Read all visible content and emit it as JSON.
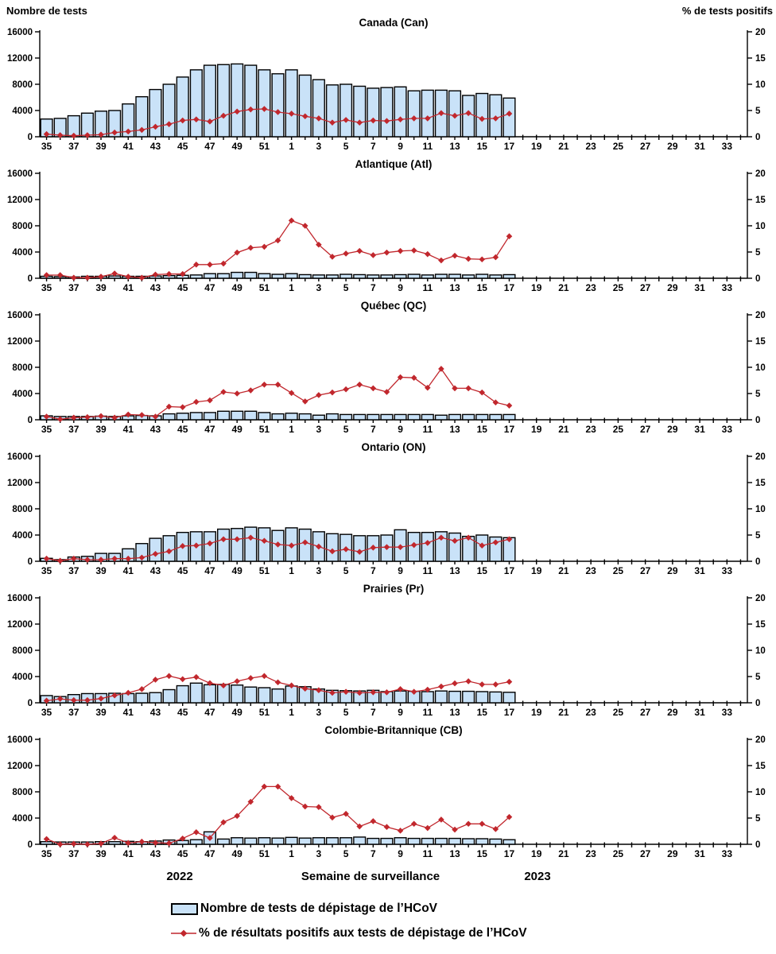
{
  "header": {
    "left_axis_title": "Nombre de tests",
    "right_axis_title": "% de tests positifs"
  },
  "x_axis": {
    "label": "Semaine de surveillance",
    "year_left": "2022",
    "year_right": "2023",
    "tick_labels": [
      "35",
      "37",
      "39",
      "41",
      "43",
      "45",
      "47",
      "49",
      "51",
      "1",
      "3",
      "5",
      "7",
      "9",
      "11",
      "13",
      "15",
      "17",
      "19",
      "21",
      "23",
      "25",
      "27",
      "29",
      "31",
      "33"
    ]
  },
  "y_axis_left": {
    "ticks": [
      0,
      4000,
      8000,
      12000,
      16000
    ],
    "max": 16000
  },
  "y_axis_right": {
    "ticks": [
      0,
      5,
      10,
      15,
      20
    ],
    "max": 20
  },
  "legend": {
    "bar_label": "Nombre de tests de dépistage de l’HCoV",
    "line_label": "% de résultats positifs aux tests de dépistage de l’HCoV"
  },
  "colors": {
    "bar_fill": "#C9E2F8",
    "bar_stroke": "#000000",
    "line": "#C1272D",
    "text": "#000000"
  },
  "chart_data": {
    "type": "bar+line combo, small multiples",
    "categories": [
      "35",
      "36",
      "37",
      "38",
      "39",
      "40",
      "41",
      "42",
      "43",
      "44",
      "45",
      "46",
      "47",
      "48",
      "49",
      "50",
      "51",
      "52",
      "1",
      "2",
      "3",
      "4",
      "5",
      "6",
      "7",
      "8",
      "9",
      "10",
      "11",
      "12",
      "13",
      "14",
      "15",
      "16",
      "17",
      "18",
      "19",
      "20",
      "21",
      "22",
      "23",
      "24",
      "25",
      "26",
      "27",
      "28",
      "29",
      "30",
      "31",
      "32",
      "33",
      "34"
    ],
    "data_weeks_covered": "35 (2022) through 17 (2023)",
    "bar_series_name": "Nombre de tests de dépistage de l’HCoV",
    "line_series_name": "% de résultats positifs aux tests de dépistage de l’HCoV",
    "ylim_left": [
      0,
      16000
    ],
    "ylim_right": [
      0,
      20
    ],
    "panels": [
      {
        "id": "can",
        "title": "Canada (Can)",
        "bars": [
          2700,
          2800,
          3200,
          3600,
          3900,
          4000,
          5000,
          6100,
          7200,
          8000,
          9100,
          10200,
          10900,
          11000,
          11100,
          10900,
          10200,
          9600,
          10200,
          9400,
          8700,
          7900,
          8000,
          7700,
          7400,
          7500,
          7600,
          7000,
          7100,
          7100,
          7000,
          6300,
          6600,
          6400,
          5900
        ],
        "line": [
          0.5,
          0.3,
          0.2,
          0.3,
          0.4,
          0.8,
          1.0,
          1.3,
          1.9,
          2.4,
          3.1,
          3.3,
          2.9,
          4.0,
          4.8,
          5.2,
          5.3,
          4.7,
          4.4,
          3.9,
          3.5,
          2.7,
          3.2,
          2.7,
          3.1,
          3.0,
          3.3,
          3.5,
          3.5,
          4.5,
          4.0,
          4.5,
          3.4,
          3.5,
          4.4
        ]
      },
      {
        "id": "atl",
        "title": "Atlantique (Atl)",
        "bars": [
          300,
          250,
          200,
          300,
          300,
          350,
          300,
          300,
          350,
          400,
          450,
          500,
          700,
          700,
          900,
          900,
          700,
          600,
          700,
          550,
          500,
          500,
          600,
          550,
          500,
          500,
          550,
          600,
          500,
          600,
          600,
          500,
          600,
          500,
          550
        ],
        "line": [
          0.6,
          0.6,
          0.1,
          0.1,
          0.3,
          0.9,
          0.3,
          0.1,
          0.7,
          0.8,
          0.8,
          2.6,
          2.6,
          2.8,
          4.9,
          5.8,
          6.0,
          7.2,
          11.0,
          10.0,
          6.4,
          4.1,
          4.7,
          5.2,
          4.4,
          4.9,
          5.2,
          5.3,
          4.6,
          3.4,
          4.3,
          3.7,
          3.6,
          4.0,
          8.0
        ]
      },
      {
        "id": "qc",
        "title": "Québec (QC)",
        "bars": [
          600,
          500,
          500,
          500,
          550,
          500,
          600,
          650,
          600,
          900,
          1000,
          1100,
          1100,
          1300,
          1300,
          1300,
          1100,
          900,
          1000,
          900,
          700,
          900,
          800,
          800,
          800,
          800,
          800,
          800,
          800,
          700,
          800,
          800,
          800,
          800,
          800
        ],
        "line": [
          0.6,
          0.1,
          0.4,
          0.5,
          0.7,
          0.4,
          1.0,
          0.9,
          0.6,
          2.5,
          2.4,
          3.4,
          3.7,
          5.3,
          5.0,
          5.6,
          6.7,
          6.7,
          5.1,
          3.5,
          4.7,
          5.2,
          5.8,
          6.7,
          6.0,
          5.3,
          8.1,
          8.0,
          6.1,
          9.7,
          6.0,
          6.0,
          5.2,
          3.3,
          2.7
        ]
      },
      {
        "id": "on",
        "title": "Ontario (ON)",
        "bars": [
          450,
          250,
          650,
          750,
          1200,
          1200,
          1900,
          2700,
          3500,
          3900,
          4400,
          4500,
          4500,
          4900,
          5000,
          5200,
          5100,
          4700,
          5100,
          4900,
          4500,
          4200,
          4100,
          3900,
          3900,
          4000,
          4800,
          4400,
          4400,
          4500,
          4300,
          3800,
          4000,
          3700,
          3600
        ],
        "line": [
          0.5,
          0.1,
          0.5,
          0.3,
          0.3,
          0.5,
          0.5,
          0.7,
          1.4,
          1.9,
          2.9,
          3.0,
          3.4,
          4.2,
          4.2,
          4.5,
          3.9,
          3.2,
          3.0,
          3.6,
          2.8,
          1.9,
          2.3,
          1.8,
          2.6,
          2.7,
          2.7,
          3.1,
          3.5,
          4.5,
          3.9,
          4.5,
          3.0,
          3.6,
          4.2
        ]
      },
      {
        "id": "pr",
        "title": "Prairies (Pr)",
        "bars": [
          1100,
          950,
          1250,
          1400,
          1400,
          1450,
          1400,
          1450,
          1550,
          2000,
          2600,
          3000,
          2750,
          2800,
          2700,
          2400,
          2300,
          2100,
          2550,
          2450,
          2100,
          1900,
          1850,
          1800,
          1900,
          1700,
          1800,
          1750,
          1700,
          1800,
          1750,
          1750,
          1700,
          1650,
          1600
        ],
        "line": [
          0.4,
          0.75,
          0.5,
          0.5,
          0.8,
          1.4,
          1.9,
          2.6,
          4.4,
          5.1,
          4.5,
          4.9,
          3.75,
          3.3,
          4.1,
          4.7,
          5.1,
          3.9,
          3.3,
          2.7,
          2.4,
          1.9,
          2.1,
          1.9,
          2.0,
          2.0,
          2.6,
          2.1,
          2.5,
          3.1,
          3.7,
          4.1,
          3.5,
          3.5,
          4.0
        ]
      },
      {
        "id": "cb",
        "title": "Colombie-Britannique (CB)",
        "bars": [
          400,
          350,
          350,
          350,
          400,
          400,
          450,
          400,
          500,
          650,
          580,
          700,
          1900,
          800,
          1000,
          950,
          1000,
          950,
          1050,
          950,
          1000,
          1000,
          1000,
          1100,
          900,
          900,
          1000,
          900,
          900,
          900,
          900,
          850,
          850,
          800,
          700
        ],
        "line": [
          1.0,
          0.0,
          0.1,
          0.0,
          0.15,
          1.25,
          0.25,
          0.5,
          0.3,
          0.2,
          1.1,
          2.3,
          1.2,
          4.2,
          5.4,
          8.1,
          11.0,
          11.0,
          8.8,
          7.2,
          7.1,
          5.1,
          5.8,
          3.4,
          4.4,
          3.3,
          2.6,
          3.9,
          3.1,
          4.7,
          2.8,
          3.9,
          3.9,
          2.9,
          5.2
        ]
      }
    ]
  }
}
